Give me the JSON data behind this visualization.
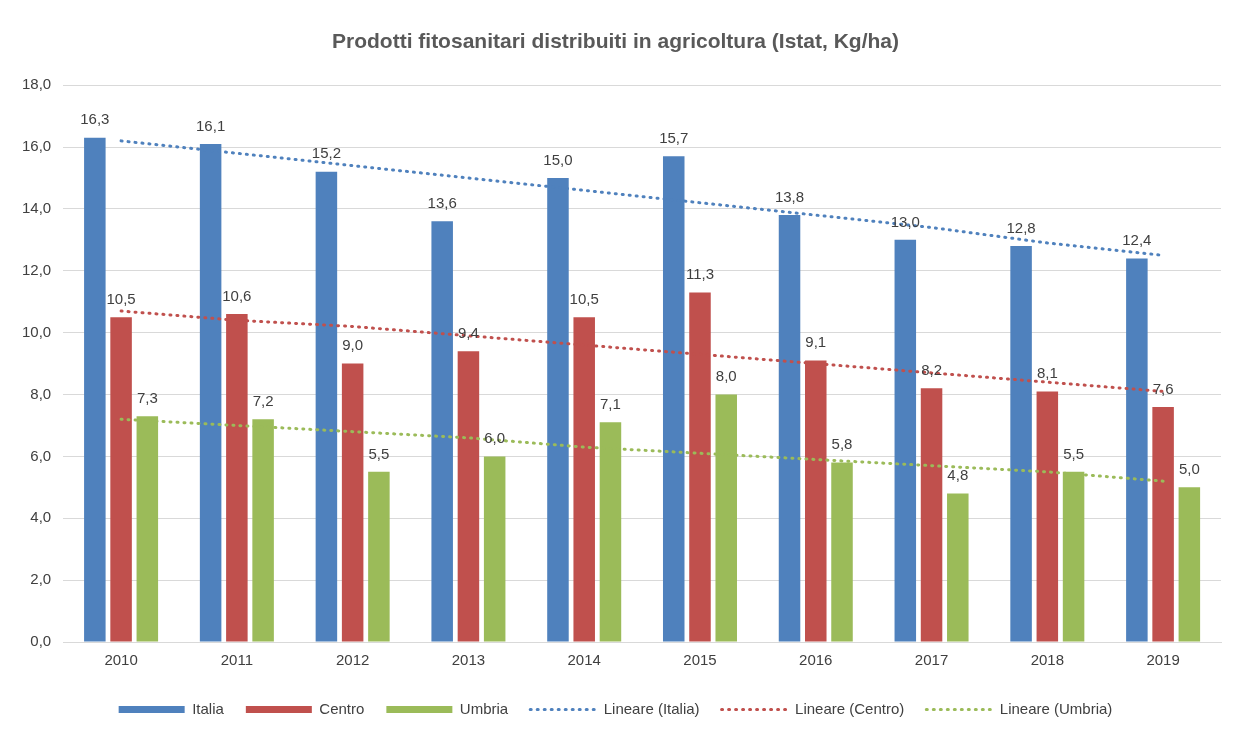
{
  "chart_data": {
    "type": "bar",
    "title": "Prodotti fitosanitari distribuiti in agricoltura (Istat, Kg/ha)",
    "categories": [
      "2010",
      "2011",
      "2012",
      "2013",
      "2014",
      "2015",
      "2016",
      "2017",
      "2018",
      "2019"
    ],
    "series": [
      {
        "name": "Italia",
        "color": "#4f81bd",
        "values": [
          16.3,
          16.1,
          15.2,
          13.6,
          15.0,
          15.7,
          13.8,
          13.0,
          12.8,
          12.4
        ],
        "value_labels": [
          "16,3",
          "16,1",
          "15,2",
          "13,6",
          "15,0",
          "15,7",
          "13,8",
          "13,0",
          "12,8",
          "12,4"
        ]
      },
      {
        "name": "Centro",
        "color": "#c0504d",
        "values": [
          10.5,
          10.6,
          9.0,
          9.4,
          10.5,
          11.3,
          9.1,
          8.2,
          8.1,
          7.6
        ],
        "value_labels": [
          "10,5",
          "10,6",
          "9,0",
          "9,4",
          "10,5",
          "11,3",
          "9,1",
          "8,2",
          "8,1",
          "7,6"
        ]
      },
      {
        "name": "Umbria",
        "color": "#9bbb59",
        "values": [
          7.3,
          7.2,
          5.5,
          6.0,
          7.1,
          8.0,
          5.8,
          4.8,
          5.5,
          5.0
        ],
        "value_labels": [
          "7,3",
          "7,2",
          "5,5",
          "6,0",
          "7,1",
          "8,0",
          "5,8",
          "4,8",
          "5,5",
          "5,0"
        ]
      },
      {
        "name": "Lineare (Italia)",
        "type": "line",
        "color": "#4f81bd",
        "line_style": "dotted",
        "marker": "none",
        "values": [
          16.2,
          15.8,
          15.4,
          15.0,
          14.6,
          14.2,
          13.8,
          13.4,
          12.9,
          12.5
        ]
      },
      {
        "name": "Lineare (Centro)",
        "type": "line",
        "color": "#c0504d",
        "line_style": "dotted",
        "marker": "none",
        "values": [
          10.7,
          10.4,
          10.2,
          9.9,
          9.6,
          9.3,
          9.0,
          8.7,
          8.4,
          8.1
        ]
      },
      {
        "name": "Lineare (Umbria)",
        "type": "line",
        "color": "#9bbb59",
        "line_style": "dotted",
        "marker": "none",
        "values": [
          7.2,
          7.0,
          6.8,
          6.6,
          6.3,
          6.1,
          5.9,
          5.7,
          5.5,
          5.2
        ]
      }
    ],
    "ylim": [
      0,
      18
    ],
    "yticks": [
      {
        "value": 0,
        "label": "0,0"
      },
      {
        "value": 2,
        "label": "2,0"
      },
      {
        "value": 4,
        "label": "4,0"
      },
      {
        "value": 6,
        "label": "6,0"
      },
      {
        "value": 8,
        "label": "8,0"
      },
      {
        "value": 10,
        "label": "10,0"
      },
      {
        "value": 12,
        "label": "12,0"
      },
      {
        "value": 14,
        "label": "14,0"
      },
      {
        "value": 16,
        "label": "16,0"
      },
      {
        "value": 18,
        "label": "18,0"
      }
    ],
    "grid": "y",
    "legend": "bottom"
  }
}
